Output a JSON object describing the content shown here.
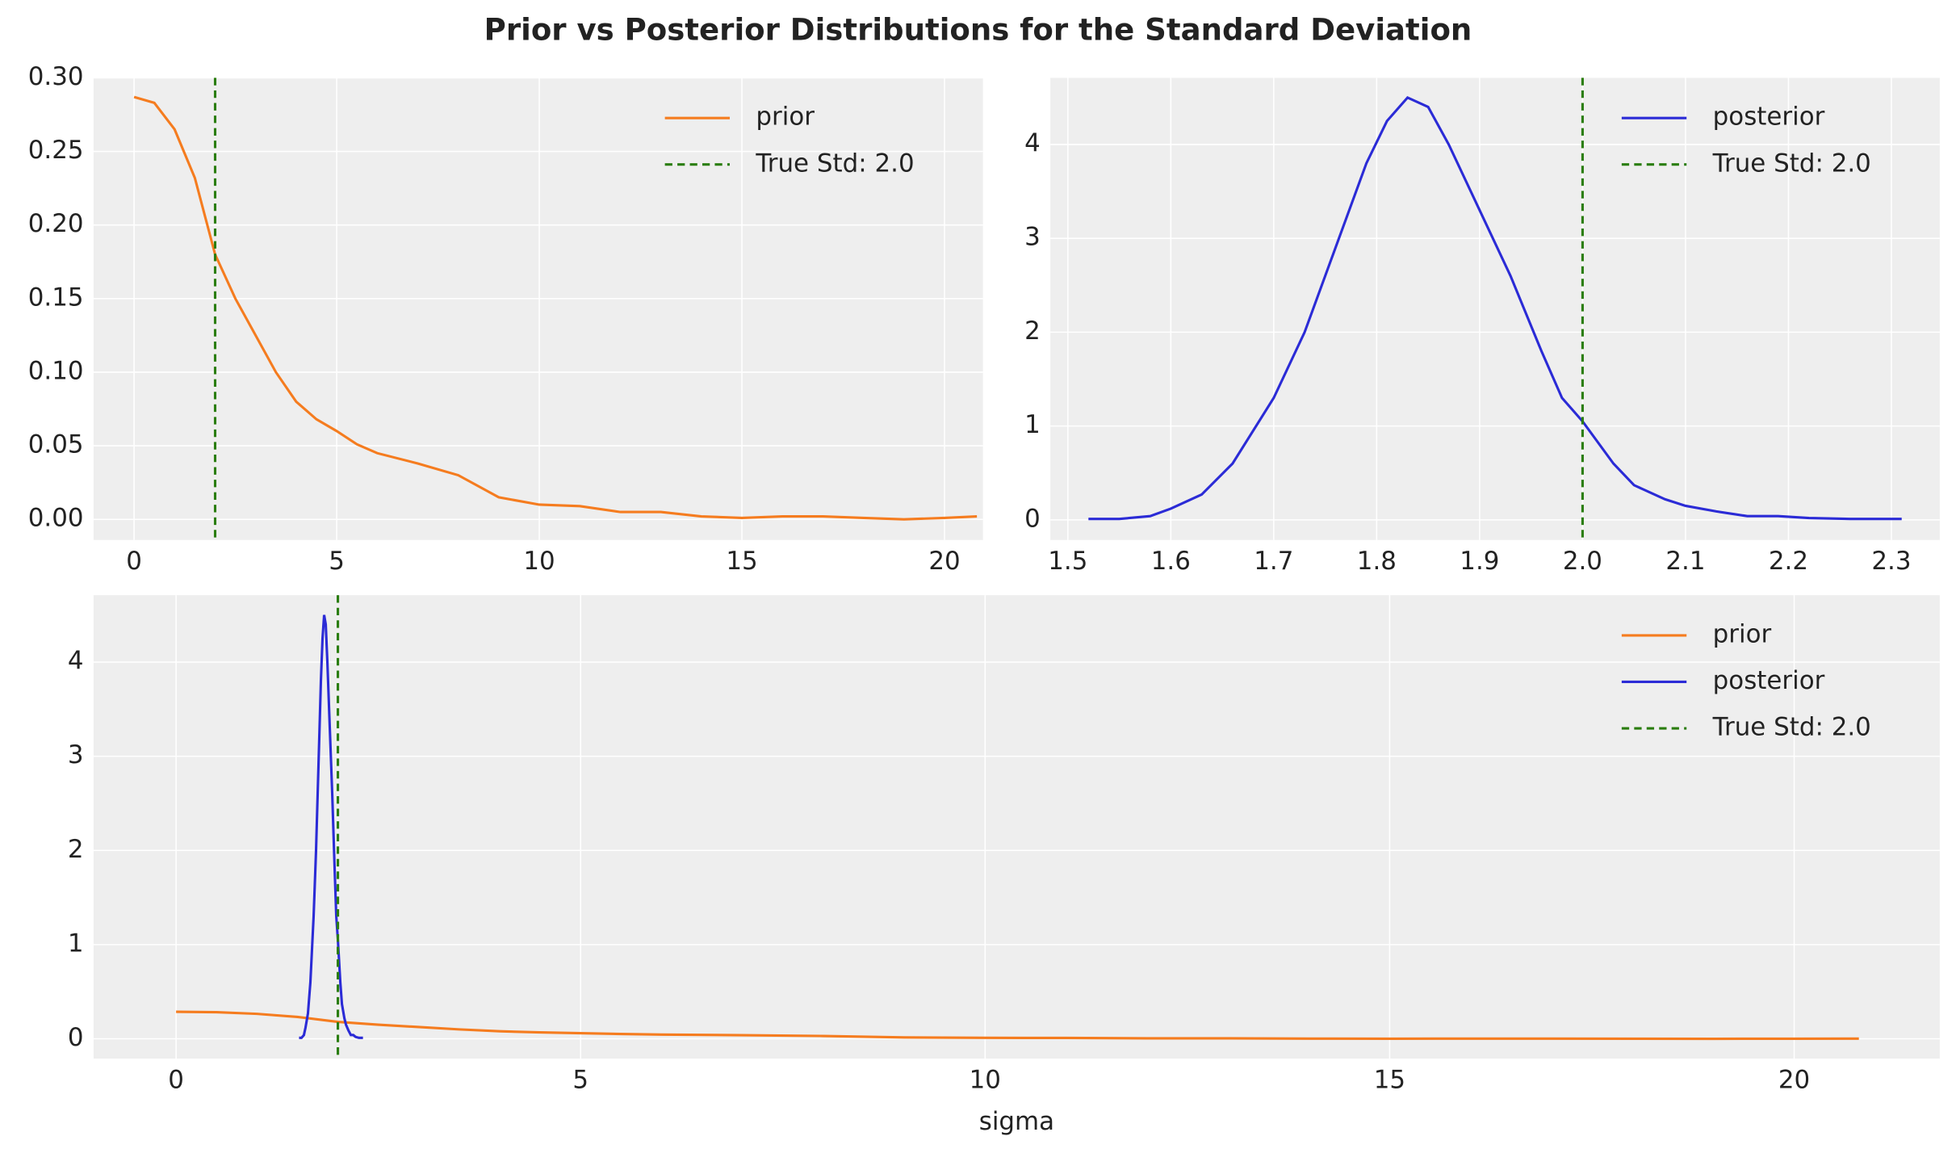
{
  "title": "Prior vs Posterior Distributions for the Standard Deviation",
  "chart_data": [
    {
      "type": "line",
      "legend": "upper right",
      "grid": true,
      "xlim": [
        -1.0,
        20.95
      ],
      "ylim": [
        -0.014,
        0.3
      ],
      "xticks": [
        0,
        5,
        10,
        15,
        20
      ],
      "yticks": [
        {
          "value": 0,
          "label": "0.00"
        },
        0.05,
        {
          "value": 0.1,
          "label": "0.10"
        },
        0.15,
        {
          "value": 0.2,
          "label": "0.20"
        },
        0.25,
        {
          "value": 0.3,
          "label": "0.30"
        }
      ],
      "series": [
        {
          "name": "prior",
          "color": "#f57c1f",
          "x": [
            0,
            0.5,
            1,
            1.5,
            2,
            2.5,
            3,
            3.5,
            4,
            4.5,
            5,
            5.5,
            6,
            7,
            8,
            9,
            10,
            11,
            12,
            13,
            14,
            15,
            16,
            17,
            18,
            19,
            20,
            20.8
          ],
          "values": [
            0.287,
            0.283,
            0.265,
            0.232,
            0.18,
            0.15,
            0.125,
            0.1,
            0.08,
            0.068,
            0.06,
            0.051,
            0.045,
            0.038,
            0.03,
            0.015,
            0.01,
            0.009,
            0.005,
            0.005,
            0.002,
            0.001,
            0.002,
            0.002,
            0.001,
            0.0,
            0.001,
            0.002
          ]
        }
      ],
      "vlines": [
        {
          "name": "True Std: 2.0",
          "x": 2.0,
          "color": "#2a7d0e"
        }
      ]
    },
    {
      "type": "line",
      "legend": "upper right",
      "grid": true,
      "xlim": [
        1.483,
        2.347
      ],
      "ylim": [
        -0.214,
        4.71
      ],
      "xticks": [
        1.5,
        1.6,
        1.7,
        1.8,
        1.9,
        {
          "value": 2.0,
          "label": "2.0"
        },
        2.1,
        2.2,
        2.3
      ],
      "yticks": [
        0,
        1,
        2,
        3,
        4
      ],
      "series": [
        {
          "name": "posterior",
          "color": "#2b2bd6",
          "x": [
            1.52,
            1.55,
            1.58,
            1.6,
            1.63,
            1.66,
            1.7,
            1.73,
            1.76,
            1.79,
            1.81,
            1.83,
            1.85,
            1.87,
            1.9,
            1.93,
            1.96,
            1.98,
            2.0,
            2.03,
            2.05,
            2.08,
            2.1,
            2.13,
            2.16,
            2.19,
            2.22,
            2.26,
            2.31
          ],
          "values": [
            0.01,
            0.01,
            0.04,
            0.12,
            0.27,
            0.6,
            1.3,
            2.0,
            2.9,
            3.8,
            4.25,
            4.5,
            4.4,
            4.0,
            3.3,
            2.6,
            1.8,
            1.3,
            1.05,
            0.6,
            0.37,
            0.22,
            0.15,
            0.09,
            0.04,
            0.04,
            0.02,
            0.01,
            0.01
          ]
        }
      ],
      "vlines": [
        {
          "name": "True Std: 2.0",
          "x": 2.0,
          "color": "#2a7d0e"
        }
      ]
    },
    {
      "type": "line",
      "legend": "upper right",
      "grid": true,
      "x_label": "sigma",
      "xlim": [
        -1.02,
        21.8
      ],
      "ylim": [
        -0.21,
        4.71
      ],
      "xticks": [
        0,
        5,
        10,
        15,
        20
      ],
      "yticks": [
        0,
        1,
        2,
        3,
        4
      ],
      "series": [
        {
          "name": "prior",
          "color": "#f57c1f",
          "x": [
            0,
            0.5,
            1,
            1.5,
            2,
            2.5,
            3,
            3.5,
            4,
            4.5,
            5,
            5.5,
            6,
            7,
            8,
            9,
            10,
            11,
            12,
            13,
            14,
            15,
            16,
            17,
            18,
            19,
            20,
            20.8
          ],
          "values": [
            0.287,
            0.283,
            0.265,
            0.232,
            0.18,
            0.15,
            0.125,
            0.1,
            0.08,
            0.068,
            0.06,
            0.051,
            0.045,
            0.038,
            0.03,
            0.015,
            0.01,
            0.009,
            0.005,
            0.005,
            0.002,
            0.001,
            0.002,
            0.002,
            0.001,
            0.0,
            0.001,
            0.002
          ]
        },
        {
          "name": "posterior",
          "color": "#2b2bd6",
          "x": [
            1.52,
            1.55,
            1.58,
            1.6,
            1.63,
            1.66,
            1.7,
            1.73,
            1.76,
            1.79,
            1.81,
            1.83,
            1.85,
            1.87,
            1.9,
            1.93,
            1.96,
            1.98,
            2.0,
            2.03,
            2.05,
            2.08,
            2.1,
            2.13,
            2.16,
            2.19,
            2.22,
            2.26,
            2.31
          ],
          "values": [
            0.01,
            0.01,
            0.04,
            0.12,
            0.27,
            0.6,
            1.3,
            2.0,
            2.9,
            3.8,
            4.25,
            4.5,
            4.4,
            4.0,
            3.3,
            2.6,
            1.8,
            1.3,
            1.05,
            0.6,
            0.37,
            0.22,
            0.15,
            0.09,
            0.04,
            0.04,
            0.02,
            0.01,
            0.01
          ]
        }
      ],
      "vlines": [
        {
          "name": "True Std: 2.0",
          "x": 2.0,
          "color": "#2a7d0e"
        }
      ]
    }
  ]
}
